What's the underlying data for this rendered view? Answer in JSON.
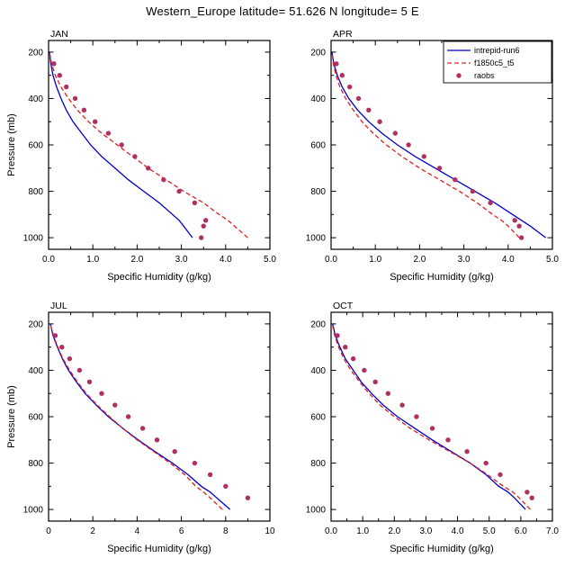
{
  "title": "Western_Europe  latitude= 51.626 N longitude= 5 E",
  "colors": {
    "model1": "#0000cd",
    "model2": "#e02020",
    "raobs": "#b03060",
    "frame": "#000000"
  },
  "chart_data": [
    {
      "type": "line",
      "panel": "JAN",
      "xlabel": "Specific Humidity (g/kg)",
      "ylabel": "Pressure (mb)",
      "xlim": [
        0.0,
        5.0
      ],
      "xticks": [
        0,
        1,
        2,
        3,
        4,
        5
      ],
      "xtick_labels": [
        "0.0",
        "1.0",
        "2.0",
        "3.0",
        "4.0",
        "5.0"
      ],
      "x_minor": [
        0.5,
        1.5,
        2.5,
        3.5,
        4.5
      ],
      "ylim_top": 150,
      "ylim_bottom": 1050,
      "yticks": [
        200,
        400,
        600,
        800,
        1000
      ],
      "y_minor": [
        300,
        500,
        700,
        900
      ],
      "legend": false,
      "series": [
        {
          "name": "intrepid-run6",
          "style": "solid",
          "color": "#0000cd",
          "pressure": [
            1000,
            950,
            925,
            900,
            850,
            800,
            750,
            700,
            650,
            600,
            550,
            500,
            450,
            400,
            350,
            300,
            250,
            200
          ],
          "values": [
            3.25,
            3.05,
            2.95,
            2.8,
            2.5,
            2.15,
            1.8,
            1.5,
            1.2,
            0.95,
            0.75,
            0.55,
            0.4,
            0.28,
            0.18,
            0.1,
            0.05,
            0.02
          ]
        },
        {
          "name": "f1850c5_t5",
          "style": "dashed",
          "color": "#e02020",
          "pressure": [
            1000,
            950,
            925,
            900,
            850,
            800,
            750,
            700,
            650,
            600,
            550,
            500,
            450,
            400,
            350,
            300,
            250,
            200
          ],
          "values": [
            4.5,
            4.2,
            4.05,
            3.85,
            3.5,
            3.05,
            2.65,
            2.25,
            1.9,
            1.55,
            1.2,
            0.9,
            0.65,
            0.45,
            0.28,
            0.15,
            0.07,
            0.02
          ]
        },
        {
          "name": "raobs",
          "style": "dots",
          "color": "#b03060",
          "pressure": [
            1000,
            950,
            925,
            850,
            800,
            750,
            700,
            650,
            600,
            550,
            500,
            450,
            400,
            350,
            300,
            250
          ],
          "values": [
            3.45,
            3.5,
            3.55,
            3.3,
            2.95,
            2.6,
            2.25,
            1.95,
            1.65,
            1.35,
            1.05,
            0.8,
            0.6,
            0.4,
            0.25,
            0.12
          ]
        }
      ]
    },
    {
      "type": "line",
      "panel": "APR",
      "xlabel": "Specific Humidity (g/kg)",
      "ylabel": "",
      "xlim": [
        0.0,
        5.0
      ],
      "xticks": [
        0,
        1,
        2,
        3,
        4,
        5
      ],
      "xtick_labels": [
        "0.0",
        "1.0",
        "2.0",
        "3.0",
        "4.0",
        "5.0"
      ],
      "x_minor": [
        0.5,
        1.5,
        2.5,
        3.5,
        4.5
      ],
      "ylim_top": 150,
      "ylim_bottom": 1050,
      "yticks": [
        200,
        400,
        600,
        800,
        1000
      ],
      "y_minor": [
        300,
        500,
        700,
        900
      ],
      "legend": true,
      "series": [
        {
          "name": "intrepid-run6",
          "style": "solid",
          "color": "#0000cd",
          "pressure": [
            1000,
            950,
            925,
            900,
            850,
            800,
            750,
            700,
            650,
            600,
            550,
            500,
            450,
            400,
            350,
            300,
            250,
            200
          ],
          "values": [
            4.85,
            4.5,
            4.3,
            4.1,
            3.7,
            3.25,
            2.8,
            2.35,
            1.9,
            1.5,
            1.15,
            0.85,
            0.6,
            0.4,
            0.25,
            0.14,
            0.06,
            0.02
          ]
        },
        {
          "name": "f1850c5_t5",
          "style": "dashed",
          "color": "#e02020",
          "pressure": [
            1000,
            950,
            925,
            900,
            850,
            800,
            750,
            700,
            650,
            600,
            550,
            500,
            450,
            400,
            350,
            300,
            250,
            200
          ],
          "values": [
            4.25,
            4.0,
            3.85,
            3.65,
            3.3,
            2.9,
            2.45,
            2.0,
            1.6,
            1.25,
            0.95,
            0.7,
            0.5,
            0.33,
            0.2,
            0.11,
            0.05,
            0.02
          ]
        },
        {
          "name": "raobs",
          "style": "dots",
          "color": "#b03060",
          "pressure": [
            1000,
            950,
            925,
            850,
            800,
            750,
            700,
            650,
            600,
            550,
            500,
            450,
            400,
            350,
            300,
            250
          ],
          "values": [
            4.3,
            4.25,
            4.15,
            3.6,
            3.2,
            2.8,
            2.45,
            2.1,
            1.75,
            1.45,
            1.1,
            0.85,
            0.62,
            0.42,
            0.25,
            0.12
          ]
        }
      ]
    },
    {
      "type": "line",
      "panel": "JUL",
      "xlabel": "Specific Humidity (g/kg)",
      "ylabel": "Pressure (mb)",
      "xlim": [
        0,
        10
      ],
      "xticks": [
        0,
        2,
        4,
        6,
        8,
        10
      ],
      "xtick_labels": [
        "0",
        "2",
        "4",
        "6",
        "8",
        "10"
      ],
      "x_minor": [
        1,
        3,
        5,
        7,
        9
      ],
      "ylim_top": 150,
      "ylim_bottom": 1050,
      "yticks": [
        200,
        400,
        600,
        800,
        1000
      ],
      "y_minor": [
        300,
        500,
        700,
        900
      ],
      "legend": false,
      "series": [
        {
          "name": "intrepid-run6",
          "style": "solid",
          "color": "#0000cd",
          "pressure": [
            1000,
            950,
            925,
            900,
            850,
            800,
            750,
            700,
            650,
            600,
            550,
            500,
            450,
            400,
            350,
            300,
            250,
            200
          ],
          "values": [
            8.2,
            7.6,
            7.3,
            6.9,
            6.3,
            5.6,
            4.8,
            4.05,
            3.35,
            2.7,
            2.15,
            1.65,
            1.25,
            0.9,
            0.62,
            0.4,
            0.2,
            0.08
          ]
        },
        {
          "name": "f1850c5_t5",
          "style": "dashed",
          "color": "#e02020",
          "pressure": [
            1000,
            950,
            925,
            900,
            850,
            800,
            750,
            700,
            650,
            600,
            550,
            500,
            450,
            400,
            350,
            300,
            250,
            200
          ],
          "values": [
            7.85,
            7.3,
            7.0,
            6.65,
            6.15,
            5.5,
            4.75,
            4.0,
            3.35,
            2.75,
            2.2,
            1.7,
            1.3,
            0.95,
            0.65,
            0.42,
            0.22,
            0.08
          ]
        },
        {
          "name": "raobs",
          "style": "dots",
          "color": "#b03060",
          "pressure": [
            950,
            900,
            850,
            800,
            750,
            700,
            650,
            600,
            550,
            500,
            450,
            400,
            350,
            300,
            250
          ],
          "values": [
            9.0,
            8.0,
            7.3,
            6.6,
            5.7,
            4.9,
            4.25,
            3.6,
            3.0,
            2.4,
            1.85,
            1.4,
            0.95,
            0.6,
            0.3
          ]
        }
      ]
    },
    {
      "type": "line",
      "panel": "OCT",
      "xlabel": "Specific Humidity (g/kg)",
      "ylabel": "",
      "xlim": [
        0.0,
        7.0
      ],
      "xticks": [
        0,
        1,
        2,
        3,
        4,
        5,
        6,
        7
      ],
      "xtick_labels": [
        "0.0",
        "1.0",
        "2.0",
        "3.0",
        "4.0",
        "5.0",
        "6.0",
        "7.0"
      ],
      "x_minor": [
        0.5,
        1.5,
        2.5,
        3.5,
        4.5,
        5.5,
        6.5
      ],
      "ylim_top": 150,
      "ylim_bottom": 1050,
      "yticks": [
        200,
        400,
        600,
        800,
        1000
      ],
      "y_minor": [
        300,
        500,
        700,
        900
      ],
      "legend": false,
      "series": [
        {
          "name": "intrepid-run6",
          "style": "solid",
          "color": "#0000cd",
          "pressure": [
            1000,
            950,
            925,
            900,
            850,
            800,
            750,
            700,
            650,
            600,
            550,
            500,
            450,
            400,
            350,
            300,
            250,
            200
          ],
          "values": [
            6.15,
            5.8,
            5.6,
            5.3,
            4.9,
            4.4,
            3.8,
            3.2,
            2.65,
            2.1,
            1.65,
            1.28,
            0.95,
            0.7,
            0.45,
            0.28,
            0.13,
            0.05
          ]
        },
        {
          "name": "f1850c5_t5",
          "style": "dashed",
          "color": "#e02020",
          "pressure": [
            1000,
            950,
            925,
            900,
            850,
            800,
            750,
            700,
            650,
            600,
            550,
            500,
            450,
            400,
            350,
            300,
            250,
            200
          ],
          "values": [
            6.3,
            5.95,
            5.75,
            5.45,
            4.95,
            4.4,
            3.75,
            3.1,
            2.5,
            2.0,
            1.55,
            1.2,
            0.9,
            0.63,
            0.4,
            0.24,
            0.11,
            0.04
          ]
        },
        {
          "name": "raobs",
          "style": "dots",
          "color": "#b03060",
          "pressure": [
            950,
            925,
            850,
            800,
            750,
            700,
            650,
            600,
            550,
            500,
            450,
            400,
            350,
            300,
            250
          ],
          "values": [
            6.35,
            6.2,
            5.35,
            4.9,
            4.3,
            3.7,
            3.2,
            2.7,
            2.25,
            1.8,
            1.4,
            1.05,
            0.7,
            0.45,
            0.2
          ]
        }
      ]
    }
  ]
}
